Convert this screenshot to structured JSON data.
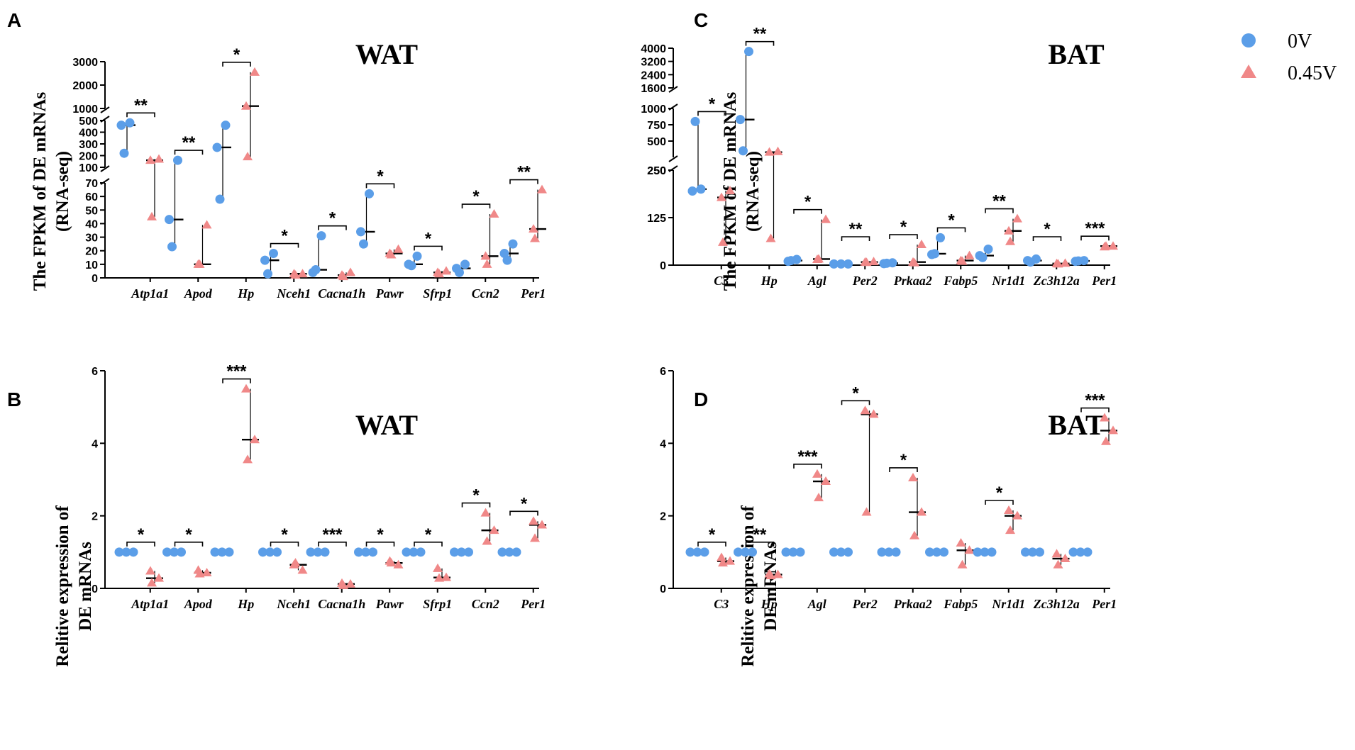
{
  "colors": {
    "control": "#5b9ee8",
    "treated": "#f08888"
  },
  "legend": {
    "control_label": "0V",
    "treated_label": "0.45V"
  },
  "chart_data": [
    {
      "type": "scatter",
      "panel": "A",
      "title": "WAT",
      "ylabel": [
        "The FPKM of DE mRNAs",
        "(RNA-seq)"
      ],
      "xlabel": "",
      "ylim": [
        0,
        3000
      ],
      "axis_segments": [
        {
          "range": [
            0,
            70
          ],
          "ticks": [
            0,
            10,
            20,
            30,
            40,
            50,
            60,
            70
          ]
        },
        {
          "range": [
            100,
            500
          ],
          "ticks": [
            100,
            200,
            300,
            400,
            500
          ]
        },
        {
          "range": [
            1000,
            3000
          ],
          "ticks": [
            1000,
            2000,
            3000
          ]
        }
      ],
      "categories": [
        "Atp1a1",
        "Apod",
        "Hp",
        "Nceh1",
        "Cacna1h",
        "Pawr",
        "Sfrp1",
        "Ccn2",
        "Per1"
      ],
      "series": [
        {
          "name": "0V",
          "marker": "circle",
          "points": [
            [
              460,
              480,
              220
            ],
            [
              43,
              160,
              23
            ],
            [
              270,
              460,
              58
            ],
            [
              13,
              18,
              3
            ],
            [
              4,
              31,
              6
            ],
            [
              34,
              62,
              25
            ],
            [
              10,
              16,
              9
            ],
            [
              7,
              10,
              4
            ],
            [
              18,
              25,
              13
            ]
          ]
        },
        {
          "name": "0.45V",
          "marker": "triangle",
          "points": [
            [
              160,
              170,
              45
            ],
            [
              10,
              39,
              10
            ],
            [
              1100,
              2550,
              190
            ],
            [
              3,
              3,
              2
            ],
            [
              2,
              4,
              1
            ],
            [
              18,
              21,
              17
            ],
            [
              4,
              5,
              3
            ],
            [
              16,
              47,
              10
            ],
            [
              36,
              65,
              29
            ]
          ]
        }
      ],
      "significance": [
        "**",
        "**",
        "*",
        "*",
        "*",
        "*",
        "*",
        "*",
        "**"
      ]
    },
    {
      "type": "scatter",
      "panel": "B",
      "title": "WAT",
      "ylabel": [
        "Relitive expression of",
        "DE mRNAs"
      ],
      "xlabel": "",
      "ylim": [
        0,
        6
      ],
      "yticks": [
        0,
        2,
        4,
        6
      ],
      "categories": [
        "Atp1a1",
        "Apod",
        "Hp",
        "Nceh1",
        "Cacna1h",
        "Pawr",
        "Sfrp1",
        "Ccn2",
        "Per1"
      ],
      "series": [
        {
          "name": "0V",
          "marker": "circle",
          "points": [
            [
              1,
              1,
              1
            ],
            [
              1,
              1,
              1
            ],
            [
              1,
              1,
              1
            ],
            [
              1,
              1,
              1
            ],
            [
              1,
              1,
              1
            ],
            [
              1,
              1,
              1
            ],
            [
              1,
              1,
              1
            ],
            [
              1,
              1,
              1
            ],
            [
              1,
              1,
              1
            ]
          ]
        },
        {
          "name": "0.45V",
          "marker": "triangle",
          "points": [
            [
              0.48,
              0.28,
              0.15
            ],
            [
              0.5,
              0.43,
              0.4
            ],
            [
              5.5,
              4.1,
              3.55
            ],
            [
              0.65,
              0.5,
              0.7
            ],
            [
              0.14,
              0.12,
              0.08
            ],
            [
              0.75,
              0.65,
              0.7
            ],
            [
              0.55,
              0.3,
              0.28
            ],
            [
              2.08,
              1.6,
              1.3
            ],
            [
              1.85,
              1.75,
              1.38
            ]
          ]
        }
      ],
      "significance": [
        "*",
        "*",
        "***",
        "*",
        "***",
        "*",
        "*",
        "*",
        "*"
      ]
    },
    {
      "type": "scatter",
      "panel": "C",
      "title": "BAT",
      "ylabel": [
        "The FPKM of DE mRNAs",
        "(RNA-seq)"
      ],
      "xlabel": "",
      "ylim": [
        0,
        4000
      ],
      "axis_segments": [
        {
          "range": [
            0,
            250
          ],
          "ticks": [
            0,
            125,
            250
          ]
        },
        {
          "range": [
            250,
            1000
          ],
          "ticks": [
            250,
            500,
            750,
            1000
          ]
        },
        {
          "range": [
            1600,
            4000
          ],
          "ticks": [
            1600,
            2400,
            3200,
            4000
          ]
        }
      ],
      "categories": [
        "C3",
        "Hp",
        "Agl",
        "Per2",
        "Prkaa2",
        "Fabp5",
        "Nr1d1",
        "Zc3h12a",
        "Per1"
      ],
      "series": [
        {
          "name": "0V",
          "marker": "circle",
          "points": [
            [
              195,
              200,
              800
            ],
            [
              830,
              3800,
              350
            ],
            [
              10,
              15,
              12
            ],
            [
              3,
              3,
              3
            ],
            [
              4,
              6,
              5
            ],
            [
              28,
              72,
              30
            ],
            [
              25,
              42,
              20
            ],
            [
              12,
              16,
              8
            ],
            [
              10,
              12,
              11
            ]
          ]
        },
        {
          "name": "0.45V",
          "marker": "triangle",
          "points": [
            [
              178,
              196,
              60
            ],
            [
              330,
              340,
              70
            ],
            [
              15,
              120,
              16
            ],
            [
              8,
              9,
              7
            ],
            [
              8,
              54,
              6
            ],
            [
              12,
              25,
              10
            ],
            [
              90,
              122,
              62
            ],
            [
              4,
              5,
              3
            ],
            [
              48,
              50,
              50
            ]
          ]
        }
      ],
      "significance": [
        "*",
        "**",
        "*",
        "**",
        "*",
        "*",
        "**",
        "*",
        "***"
      ]
    },
    {
      "type": "scatter",
      "panel": "D",
      "title": "BAT",
      "ylabel": [
        "Relitive expression of",
        "DE mRNAs"
      ],
      "xlabel": "",
      "ylim": [
        0,
        6
      ],
      "yticks": [
        0,
        2,
        4,
        6
      ],
      "categories": [
        "C3",
        "Hp",
        "Agl",
        "Per2",
        "Prkaa2",
        "Fabp5",
        "Nr1d1",
        "Zc3h12a",
        "Per1"
      ],
      "series": [
        {
          "name": "0V",
          "marker": "circle",
          "points": [
            [
              1,
              1,
              1
            ],
            [
              1,
              1,
              1
            ],
            [
              1,
              1,
              1
            ],
            [
              1,
              1,
              1
            ],
            [
              1,
              1,
              1
            ],
            [
              1,
              1,
              1
            ],
            [
              1,
              1,
              1
            ],
            [
              1,
              1,
              1
            ],
            [
              1,
              1,
              1
            ]
          ]
        },
        {
          "name": "0.45V",
          "marker": "triangle",
          "points": [
            [
              0.85,
              0.75,
              0.7
            ],
            [
              0.4,
              0.38,
              0.35
            ],
            [
              3.15,
              2.95,
              2.5
            ],
            [
              4.9,
              4.8,
              2.1
            ],
            [
              3.05,
              2.1,
              1.45
            ],
            [
              1.25,
              1.05,
              0.65
            ],
            [
              2.15,
              2.0,
              1.6
            ],
            [
              0.95,
              0.82,
              0.65
            ],
            [
              4.7,
              4.35,
              4.05
            ]
          ]
        }
      ],
      "significance": [
        "*",
        "**",
        "***",
        "*",
        "*",
        "",
        "*",
        "",
        "***"
      ]
    }
  ]
}
